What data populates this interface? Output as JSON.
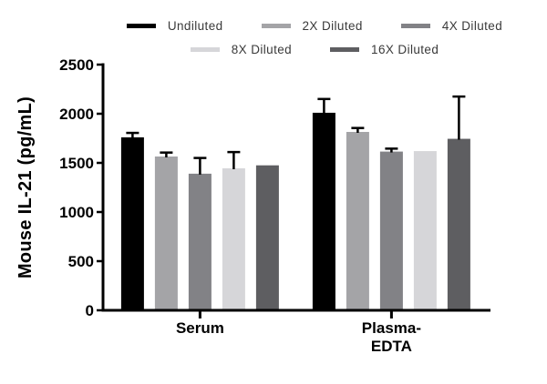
{
  "figure": {
    "background": "#ffffff"
  },
  "legend": {
    "items": [
      {
        "label": "Undiluted",
        "color": "#000000",
        "row": 1
      },
      {
        "label": "2X Diluted",
        "color": "#a4a4a7",
        "row": 1
      },
      {
        "label": "4X Diluted",
        "color": "#828286",
        "row": 1
      },
      {
        "label": "8X Diluted",
        "color": "#d6d6d9",
        "row": 2
      },
      {
        "label": "16X Diluted",
        "color": "#5e5e61",
        "row": 2
      }
    ]
  },
  "chart_data": {
    "type": "bar",
    "title": "",
    "xlabel": "",
    "ylabel": "Mouse IL-21 (pg/mL)",
    "ylim": [
      0,
      2500
    ],
    "yticks": [
      0,
      500,
      1000,
      1500,
      2000,
      2500
    ],
    "grid": false,
    "legend_position": "top",
    "categories": [
      "Serum",
      "Plasma-EDTA"
    ],
    "category_display": [
      [
        "Serum"
      ],
      [
        "Plasma-",
        "EDTA"
      ]
    ],
    "axis_color": "#000000",
    "error_bar_color": "#000000",
    "series": [
      {
        "name": "Undiluted",
        "color": "#000000",
        "values": [
          1760,
          2010
        ],
        "errors_up": [
          45,
          140
        ]
      },
      {
        "name": "2X Diluted",
        "color": "#a4a4a7",
        "values": [
          1565,
          1815
        ],
        "errors_up": [
          40,
          40
        ]
      },
      {
        "name": "4X Diluted",
        "color": "#828286",
        "values": [
          1390,
          1615
        ],
        "errors_up": [
          160,
          30
        ]
      },
      {
        "name": "8X Diluted",
        "color": "#d6d6d9",
        "values": [
          1445,
          1620
        ],
        "errors_up": [
          165,
          0
        ]
      },
      {
        "name": "16X Diluted",
        "color": "#5e5e61",
        "values": [
          1475,
          1745
        ],
        "errors_up": [
          0,
          430
        ]
      }
    ]
  }
}
